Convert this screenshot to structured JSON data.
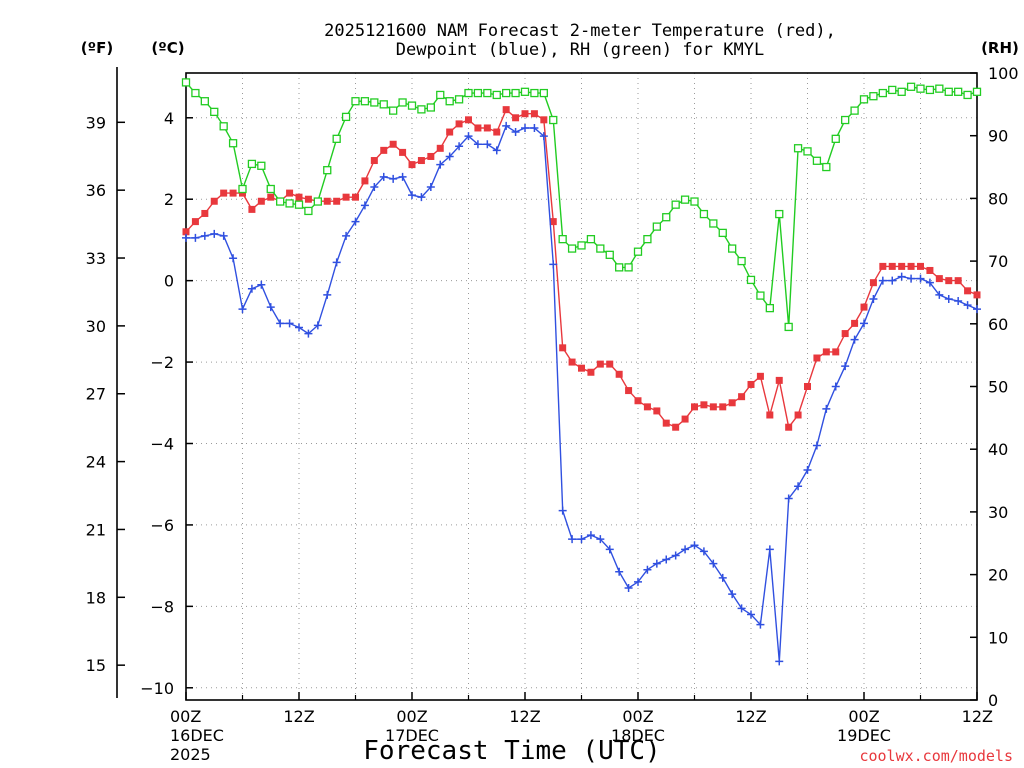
{
  "chart_data": {
    "type": "line",
    "title": "2025121600 NAM Forecast 2-meter Temperature (red),",
    "subtitle": "Dewpoint (blue), RH (green) for KMYL",
    "xlabel": "Forecast Time (UTC)",
    "credit": "coolwx.com/models",
    "unit_f": "(ºF)",
    "unit_c": "(ºC)",
    "unit_rh": "(RH)",
    "x_ticks": [
      {
        "hour": 0,
        "line1": "00Z",
        "line2": "16DEC",
        "line3": "2025"
      },
      {
        "hour": 12,
        "line1": "12Z",
        "line2": "",
        "line3": ""
      },
      {
        "hour": 24,
        "line1": "00Z",
        "line2": "17DEC",
        "line3": ""
      },
      {
        "hour": 36,
        "line1": "12Z",
        "line2": "",
        "line3": ""
      },
      {
        "hour": 48,
        "line1": "00Z",
        "line2": "18DEC",
        "line3": ""
      },
      {
        "hour": 60,
        "line1": "12Z",
        "line2": "",
        "line3": ""
      },
      {
        "hour": 72,
        "line1": "00Z",
        "line2": "19DEC",
        "line3": ""
      },
      {
        "hour": 84,
        "line1": "12Z",
        "line2": "",
        "line3": ""
      }
    ],
    "xlim": [
      0,
      84
    ],
    "ylim_c": [
      -10.3,
      5.1
    ],
    "ylim_rh": [
      0,
      100
    ],
    "y_ticks_c": [
      "4",
      "2",
      "0",
      "−2",
      "−4",
      "−6",
      "−8",
      "−10"
    ],
    "y_ticks_c_values": [
      4,
      2,
      0,
      -2,
      -4,
      -6,
      -8,
      -10
    ],
    "y_ticks_f": [
      "39",
      "36",
      "33",
      "30",
      "27",
      "24",
      "21",
      "18",
      "15"
    ],
    "y_ticks_f_values": [
      39,
      36,
      33,
      30,
      27,
      24,
      21,
      18,
      15
    ],
    "y_ticks_rh": [
      "100",
      "90",
      "80",
      "70",
      "60",
      "50",
      "40",
      "30",
      "20",
      "10",
      "0"
    ],
    "y_ticks_rh_values": [
      100,
      90,
      80,
      70,
      60,
      50,
      40,
      30,
      20,
      10,
      0
    ],
    "grid": true,
    "colors": {
      "temperature": "#e8383d",
      "dewpoint": "#3050e0",
      "rh": "#22cc22"
    },
    "series": [
      {
        "name": "Temperature",
        "axis": "C",
        "marker": "filled-square",
        "values": [
          [
            0,
            1.2
          ],
          [
            1,
            1.45
          ],
          [
            2,
            1.65
          ],
          [
            3,
            1.95
          ],
          [
            4,
            2.15
          ],
          [
            5,
            2.15
          ],
          [
            6,
            2.15
          ],
          [
            7,
            1.75
          ],
          [
            8,
            1.95
          ],
          [
            9,
            2.05
          ],
          [
            10,
            1.95
          ],
          [
            11,
            2.15
          ],
          [
            12,
            2.05
          ],
          [
            13,
            2.0
          ],
          [
            14,
            1.95
          ],
          [
            15,
            1.95
          ],
          [
            16,
            1.95
          ],
          [
            17,
            2.05
          ],
          [
            18,
            2.05
          ],
          [
            19,
            2.45
          ],
          [
            20,
            2.95
          ],
          [
            21,
            3.2
          ],
          [
            22,
            3.35
          ],
          [
            23,
            3.15
          ],
          [
            24,
            2.85
          ],
          [
            25,
            2.95
          ],
          [
            26,
            3.05
          ],
          [
            27,
            3.25
          ],
          [
            28,
            3.65
          ],
          [
            29,
            3.85
          ],
          [
            30,
            3.95
          ],
          [
            31,
            3.75
          ],
          [
            32,
            3.75
          ],
          [
            33,
            3.65
          ],
          [
            34,
            4.2
          ],
          [
            35,
            4.0
          ],
          [
            36,
            4.1
          ],
          [
            37,
            4.1
          ],
          [
            38,
            3.95
          ],
          [
            39,
            1.45
          ],
          [
            40,
            -1.65
          ],
          [
            41,
            -2.0
          ],
          [
            42,
            -2.15
          ],
          [
            43,
            -2.25
          ],
          [
            44,
            -2.05
          ],
          [
            45,
            -2.05
          ],
          [
            46,
            -2.3
          ],
          [
            47,
            -2.7
          ],
          [
            48,
            -2.95
          ],
          [
            49,
            -3.1
          ],
          [
            50,
            -3.2
          ],
          [
            51,
            -3.5
          ],
          [
            52,
            -3.6
          ],
          [
            53,
            -3.4
          ],
          [
            54,
            -3.1
          ],
          [
            55,
            -3.05
          ],
          [
            56,
            -3.1
          ],
          [
            57,
            -3.1
          ],
          [
            58,
            -3.0
          ],
          [
            59,
            -2.85
          ],
          [
            60,
            -2.55
          ],
          [
            61,
            -2.35
          ],
          [
            62,
            -3.3
          ],
          [
            63,
            -2.45
          ],
          [
            64,
            -3.6
          ],
          [
            65,
            -3.3
          ],
          [
            66,
            -2.6
          ],
          [
            67,
            -1.9
          ],
          [
            68,
            -1.75
          ],
          [
            69,
            -1.75
          ],
          [
            70,
            -1.3
          ],
          [
            71,
            -1.05
          ],
          [
            72,
            -0.65
          ],
          [
            73,
            -0.05
          ],
          [
            74,
            0.35
          ],
          [
            75,
            0.35
          ],
          [
            76,
            0.35
          ],
          [
            77,
            0.35
          ],
          [
            78,
            0.35
          ],
          [
            79,
            0.25
          ],
          [
            80,
            0.05
          ],
          [
            81,
            0.0
          ],
          [
            82,
            0.0
          ],
          [
            83,
            -0.25
          ],
          [
            84,
            -0.35
          ]
        ]
      },
      {
        "name": "Dewpoint",
        "axis": "C",
        "marker": "plus",
        "values": [
          [
            0,
            1.05
          ],
          [
            1,
            1.05
          ],
          [
            2,
            1.1
          ],
          [
            3,
            1.15
          ],
          [
            4,
            1.1
          ],
          [
            5,
            0.55
          ],
          [
            6,
            -0.7
          ],
          [
            7,
            -0.2
          ],
          [
            8,
            -0.1
          ],
          [
            9,
            -0.65
          ],
          [
            10,
            -1.05
          ],
          [
            11,
            -1.05
          ],
          [
            12,
            -1.15
          ],
          [
            13,
            -1.3
          ],
          [
            14,
            -1.1
          ],
          [
            15,
            -0.35
          ],
          [
            16,
            0.45
          ],
          [
            17,
            1.1
          ],
          [
            18,
            1.45
          ],
          [
            19,
            1.85
          ],
          [
            20,
            2.3
          ],
          [
            21,
            2.55
          ],
          [
            22,
            2.5
          ],
          [
            23,
            2.55
          ],
          [
            24,
            2.1
          ],
          [
            25,
            2.05
          ],
          [
            26,
            2.3
          ],
          [
            27,
            2.85
          ],
          [
            28,
            3.05
          ],
          [
            29,
            3.3
          ],
          [
            30,
            3.55
          ],
          [
            31,
            3.35
          ],
          [
            32,
            3.35
          ],
          [
            33,
            3.2
          ],
          [
            34,
            3.8
          ],
          [
            35,
            3.65
          ],
          [
            36,
            3.75
          ],
          [
            37,
            3.75
          ],
          [
            38,
            3.55
          ],
          [
            39,
            0.4
          ],
          [
            40,
            -5.65
          ],
          [
            41,
            -6.35
          ],
          [
            42,
            -6.35
          ],
          [
            43,
            -6.25
          ],
          [
            44,
            -6.35
          ],
          [
            45,
            -6.6
          ],
          [
            46,
            -7.15
          ],
          [
            47,
            -7.55
          ],
          [
            48,
            -7.4
          ],
          [
            49,
            -7.1
          ],
          [
            50,
            -6.95
          ],
          [
            51,
            -6.85
          ],
          [
            52,
            -6.75
          ],
          [
            53,
            -6.6
          ],
          [
            54,
            -6.5
          ],
          [
            55,
            -6.65
          ],
          [
            56,
            -6.95
          ],
          [
            57,
            -7.3
          ],
          [
            58,
            -7.7
          ],
          [
            59,
            -8.05
          ],
          [
            60,
            -8.2
          ],
          [
            61,
            -8.45
          ],
          [
            62,
            -6.6
          ],
          [
            63,
            -9.35
          ],
          [
            64,
            -5.35
          ],
          [
            65,
            -5.05
          ],
          [
            66,
            -4.65
          ],
          [
            67,
            -4.05
          ],
          [
            68,
            -3.15
          ],
          [
            69,
            -2.6
          ],
          [
            70,
            -2.1
          ],
          [
            71,
            -1.45
          ],
          [
            72,
            -1.05
          ],
          [
            73,
            -0.45
          ],
          [
            74,
            0.0
          ],
          [
            75,
            0.0
          ],
          [
            76,
            0.1
          ],
          [
            77,
            0.05
          ],
          [
            78,
            0.05
          ],
          [
            79,
            -0.05
          ],
          [
            80,
            -0.35
          ],
          [
            81,
            -0.45
          ],
          [
            82,
            -0.5
          ],
          [
            83,
            -0.6
          ],
          [
            84,
            -0.7
          ]
        ]
      },
      {
        "name": "RH",
        "axis": "RH",
        "marker": "open-square",
        "values": [
          [
            0,
            98.5
          ],
          [
            1,
            96.8
          ],
          [
            2,
            95.5
          ],
          [
            3,
            93.8
          ],
          [
            4,
            91.5
          ],
          [
            5,
            88.8
          ],
          [
            6,
            81.5
          ],
          [
            7,
            85.5
          ],
          [
            8,
            85.2
          ],
          [
            9,
            81.5
          ],
          [
            10,
            79.5
          ],
          [
            11,
            79.2
          ],
          [
            12,
            79.0
          ],
          [
            13,
            78.0
          ],
          [
            14,
            79.5
          ],
          [
            15,
            84.5
          ],
          [
            16,
            89.5
          ],
          [
            17,
            93.0
          ],
          [
            18,
            95.5
          ],
          [
            19,
            95.5
          ],
          [
            20,
            95.3
          ],
          [
            21,
            95.0
          ],
          [
            22,
            94.0
          ],
          [
            23,
            95.3
          ],
          [
            24,
            94.8
          ],
          [
            25,
            94.2
          ],
          [
            26,
            94.5
          ],
          [
            27,
            96.5
          ],
          [
            28,
            95.5
          ],
          [
            29,
            95.8
          ],
          [
            30,
            96.8
          ],
          [
            31,
            96.8
          ],
          [
            32,
            96.8
          ],
          [
            33,
            96.5
          ],
          [
            34,
            96.8
          ],
          [
            35,
            96.8
          ],
          [
            36,
            97.0
          ],
          [
            37,
            96.8
          ],
          [
            38,
            96.8
          ],
          [
            39,
            92.5
          ],
          [
            40,
            73.5
          ],
          [
            41,
            72.0
          ],
          [
            42,
            72.5
          ],
          [
            43,
            73.5
          ],
          [
            44,
            72.0
          ],
          [
            45,
            71.0
          ],
          [
            46,
            69.0
          ],
          [
            47,
            69.0
          ],
          [
            48,
            71.5
          ],
          [
            49,
            73.5
          ],
          [
            50,
            75.5
          ],
          [
            51,
            77.0
          ],
          [
            52,
            79.0
          ],
          [
            53,
            79.8
          ],
          [
            54,
            79.5
          ],
          [
            55,
            77.5
          ],
          [
            56,
            76.0
          ],
          [
            57,
            74.5
          ],
          [
            58,
            72.0
          ],
          [
            59,
            70.0
          ],
          [
            60,
            67.0
          ],
          [
            61,
            64.5
          ],
          [
            62,
            62.5
          ],
          [
            63,
            77.5
          ],
          [
            64,
            59.5
          ],
          [
            65,
            88.0
          ],
          [
            66,
            87.5
          ],
          [
            67,
            86.0
          ],
          [
            68,
            85.0
          ],
          [
            69,
            89.5
          ],
          [
            70,
            92.5
          ],
          [
            71,
            94.0
          ],
          [
            72,
            95.8
          ],
          [
            73,
            96.3
          ],
          [
            74,
            96.8
          ],
          [
            75,
            97.3
          ],
          [
            76,
            97.0
          ],
          [
            77,
            97.8
          ],
          [
            78,
            97.5
          ],
          [
            79,
            97.3
          ],
          [
            80,
            97.5
          ],
          [
            81,
            97.0
          ],
          [
            82,
            97.0
          ],
          [
            83,
            96.5
          ],
          [
            84,
            97.0
          ]
        ]
      }
    ]
  }
}
